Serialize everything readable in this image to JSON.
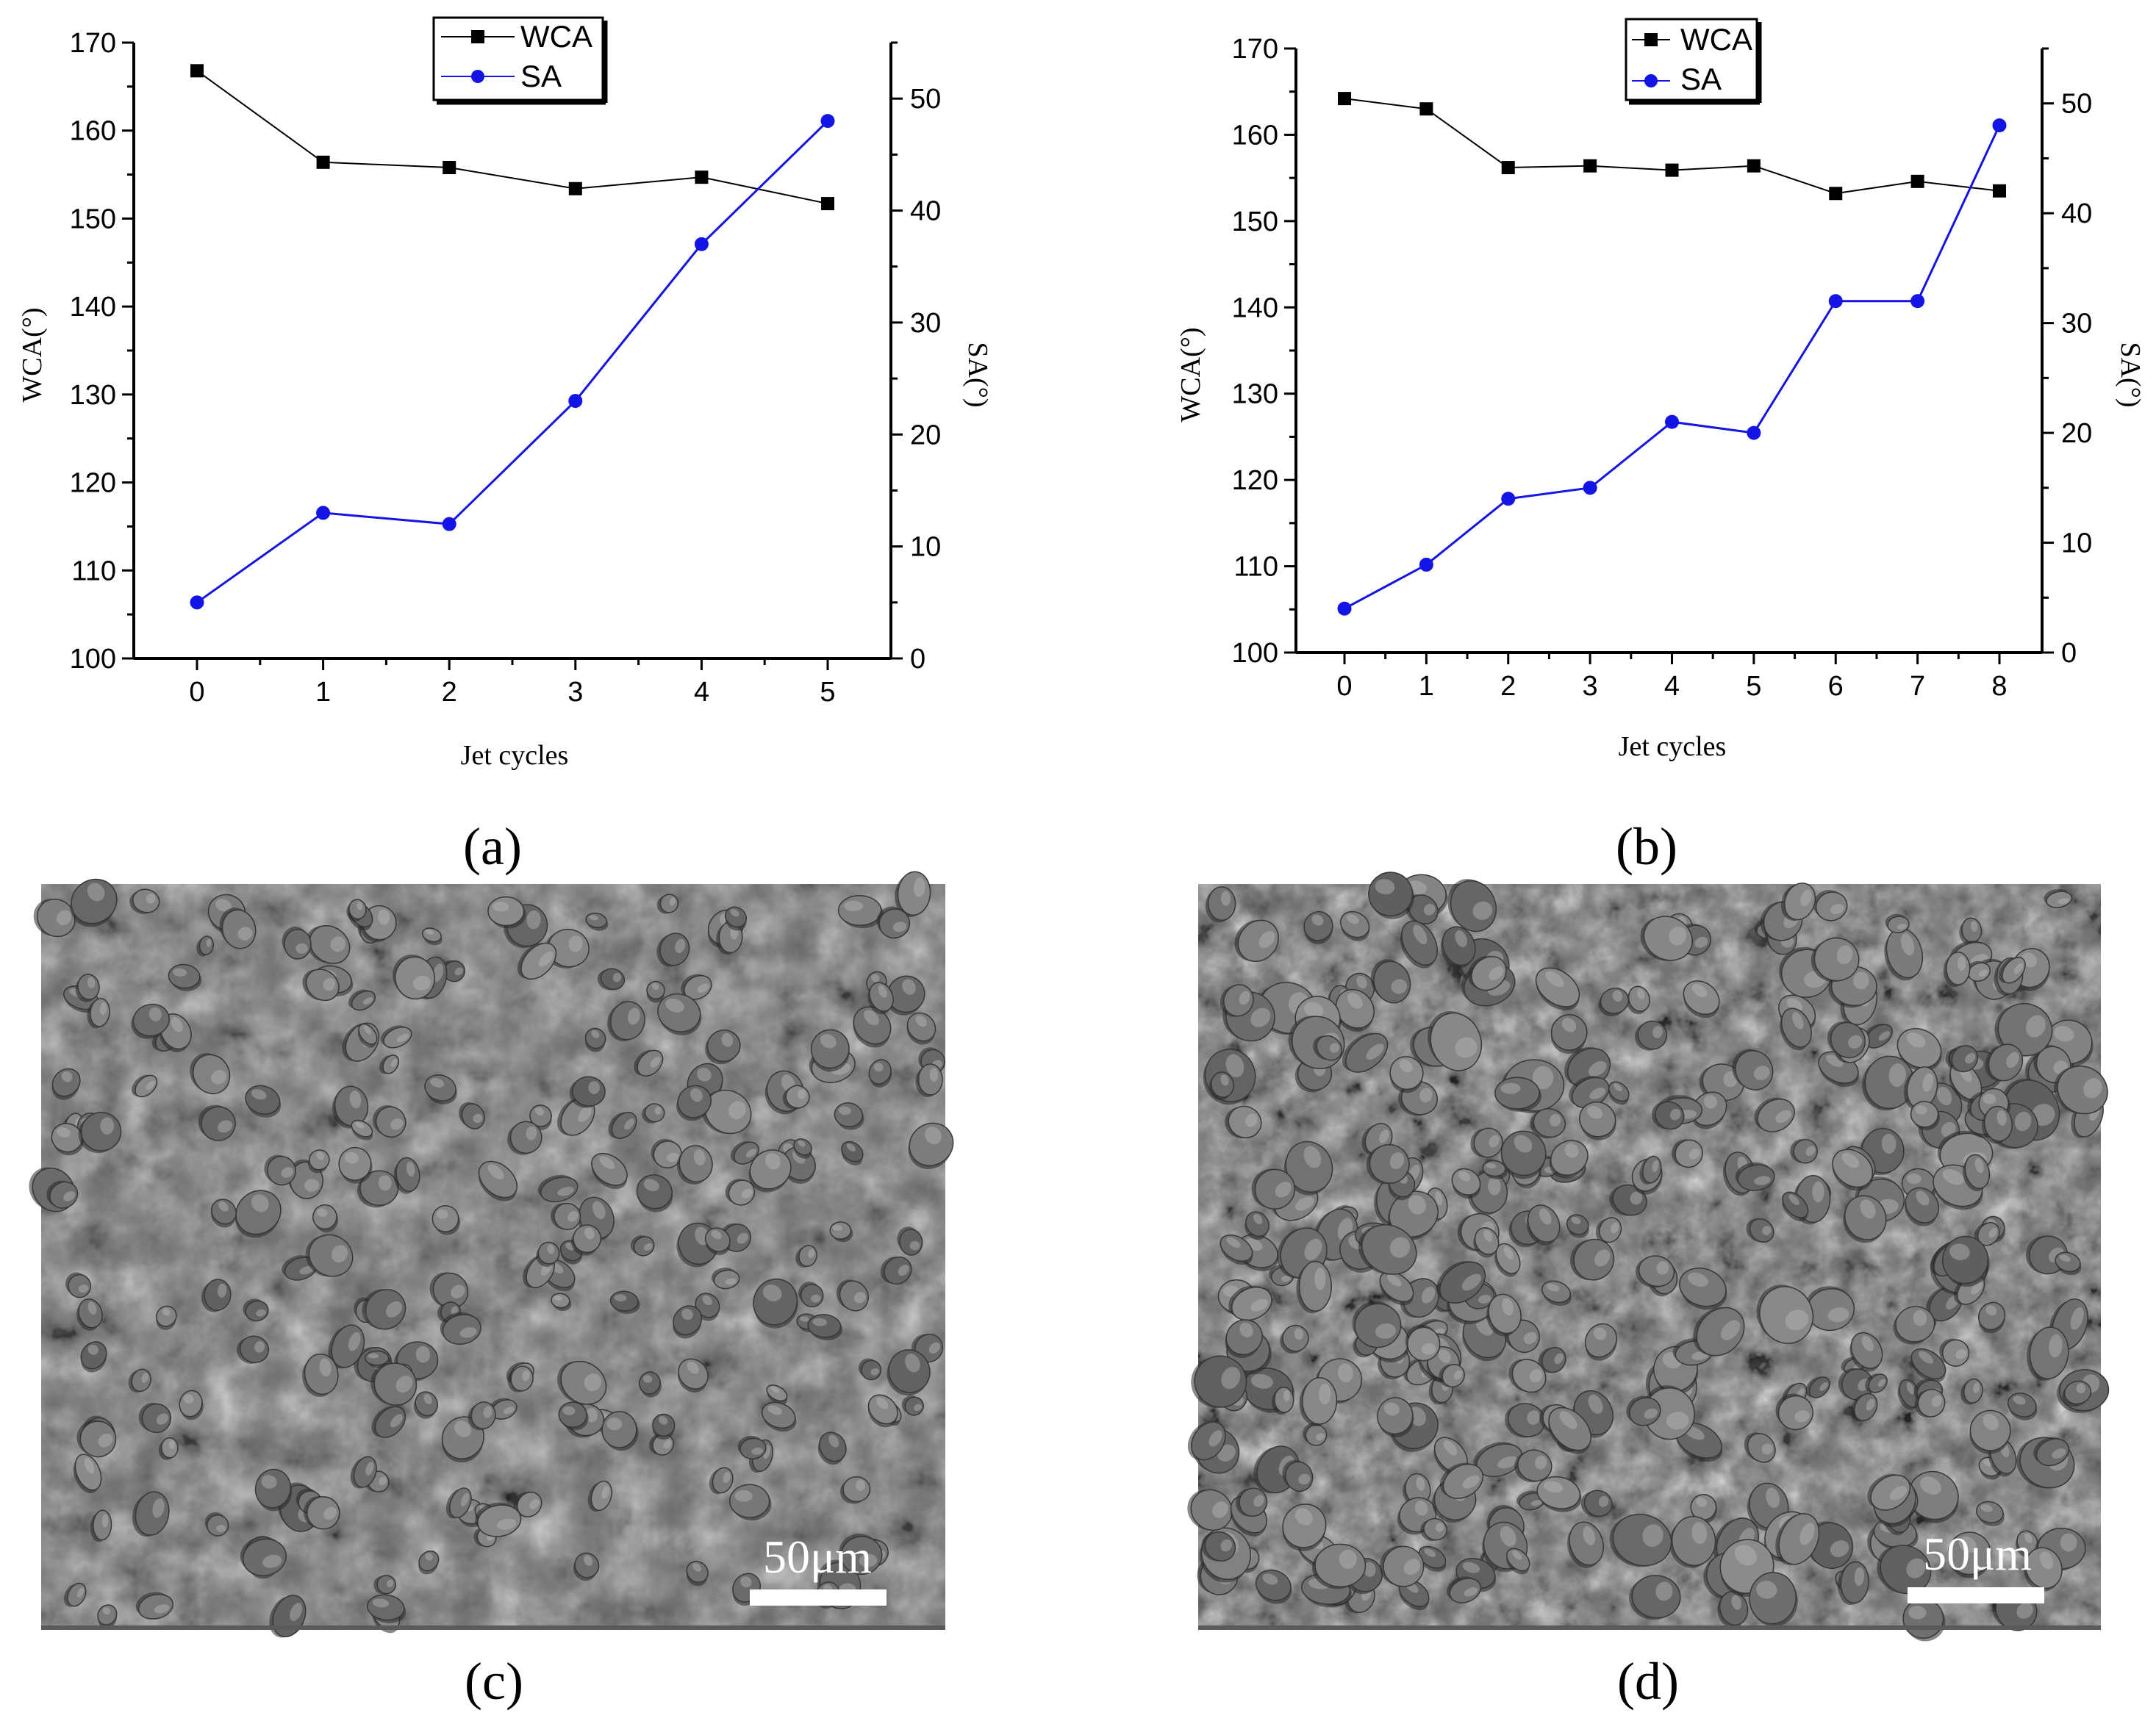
{
  "colors": {
    "wca": "#000000",
    "sa": "#1414e6",
    "sem_background": "#6e6e6e"
  },
  "chart_data": [
    {
      "panel": "a",
      "type": "line",
      "xlabel": "Jet cycles",
      "ylabel_left": "WCA(°)",
      "ylabel_right": "SA(°)",
      "x": [
        0,
        1,
        2,
        3,
        4,
        5
      ],
      "xticks": [
        "0",
        "1",
        "2",
        "3",
        "4",
        "5"
      ],
      "ylim_left": [
        100,
        170
      ],
      "yticks_left": [
        "100",
        "110",
        "120",
        "130",
        "140",
        "150",
        "160",
        "170"
      ],
      "ylim_right": [
        0,
        55
      ],
      "yticks_right": [
        "0",
        "10",
        "20",
        "30",
        "40",
        "50"
      ],
      "series": [
        {
          "name": "WCA",
          "axis": "left",
          "marker": "square",
          "values": [
            166.8,
            156.4,
            155.8,
            153.4,
            154.7,
            151.7
          ]
        },
        {
          "name": "SA",
          "axis": "right",
          "marker": "circle",
          "values": [
            5,
            13,
            12,
            23,
            37,
            48
          ]
        }
      ]
    },
    {
      "panel": "b",
      "type": "line",
      "xlabel": "Jet cycles",
      "ylabel_left": "WCA(°)",
      "ylabel_right": "SA(°)",
      "x": [
        0,
        1,
        2,
        3,
        4,
        5,
        6,
        7,
        8
      ],
      "xticks": [
        "0",
        "1",
        "2",
        "3",
        "4",
        "5",
        "6",
        "7",
        "8"
      ],
      "ylim_left": [
        100,
        170
      ],
      "yticks_left": [
        "100",
        "110",
        "120",
        "130",
        "140",
        "150",
        "160",
        "170"
      ],
      "ylim_right": [
        0,
        55
      ],
      "yticks_right": [
        "0",
        "10",
        "20",
        "30",
        "40",
        "50"
      ],
      "series": [
        {
          "name": "WCA",
          "axis": "left",
          "marker": "square",
          "values": [
            164.2,
            163.0,
            156.2,
            156.4,
            155.9,
            156.4,
            153.2,
            154.6,
            153.5
          ]
        },
        {
          "name": "SA",
          "axis": "right",
          "marker": "circle",
          "values": [
            4,
            8,
            14,
            15,
            21,
            20,
            32,
            32,
            48
          ]
        }
      ]
    }
  ],
  "panel_labels": {
    "a": "(a)",
    "b": "(b)",
    "c": "(c)",
    "d": "(d)"
  },
  "sem_images": {
    "c": {
      "scale_bar": "50μm"
    },
    "d": {
      "scale_bar": "50μm"
    }
  }
}
